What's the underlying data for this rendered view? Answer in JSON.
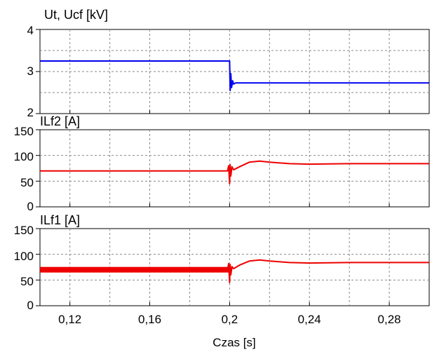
{
  "chart_data": [
    {
      "type": "line",
      "title": "Ut, Ucf  [kV]",
      "xlabel": "",
      "ylabel": "",
      "xlim": [
        0.105,
        0.3
      ],
      "ylim": [
        2,
        4
      ],
      "yticks": [
        "2",
        "3",
        "4"
      ],
      "grid": true,
      "color": "#0000ee",
      "series": [
        {
          "x": [
            0.105,
            0.1999,
            0.2,
            0.2003,
            0.2006,
            0.201,
            0.2015,
            0.202,
            0.203,
            0.3
          ],
          "y": [
            3.25,
            3.25,
            3.25,
            2.55,
            2.95,
            2.62,
            2.78,
            2.7,
            2.73,
            2.73
          ]
        }
      ]
    },
    {
      "type": "line",
      "title": "ILf2 [A]",
      "xlabel": "",
      "ylabel": "",
      "xlim": [
        0.105,
        0.3
      ],
      "ylim": [
        0,
        150
      ],
      "yticks": [
        "0",
        "50",
        "100",
        "150"
      ],
      "grid": true,
      "color": "#ee0000",
      "series": [
        {
          "x": [
            0.105,
            0.199,
            0.1995,
            0.2,
            0.2003,
            0.2006,
            0.2012,
            0.202,
            0.205,
            0.21,
            0.215,
            0.22,
            0.23,
            0.24,
            0.26,
            0.3
          ],
          "y": [
            70,
            70,
            80,
            45,
            82,
            60,
            78,
            72,
            78,
            87,
            89,
            87,
            84,
            83,
            84,
            84
          ]
        }
      ]
    },
    {
      "type": "line",
      "title": "ILf1 [A]",
      "xlabel": "Czas [s]",
      "ylabel": "",
      "xlim": [
        0.105,
        0.3
      ],
      "ylim": [
        0,
        150
      ],
      "yticks": [
        "0",
        "50",
        "100",
        "150"
      ],
      "xticks": [
        "0,12",
        "0,16",
        "0,2",
        "0,24",
        "0,28"
      ],
      "grid": true,
      "color": "#ee0000",
      "series": [
        {
          "x": [
            0.105,
            0.199,
            0.1995,
            0.2,
            0.2003,
            0.2006,
            0.2012,
            0.202,
            0.205,
            0.21,
            0.215,
            0.22,
            0.23,
            0.24,
            0.26,
            0.3
          ],
          "y": [
            70,
            70,
            82,
            45,
            80,
            60,
            76,
            72,
            79,
            87,
            89,
            87,
            84,
            83,
            84,
            84
          ]
        }
      ]
    }
  ]
}
